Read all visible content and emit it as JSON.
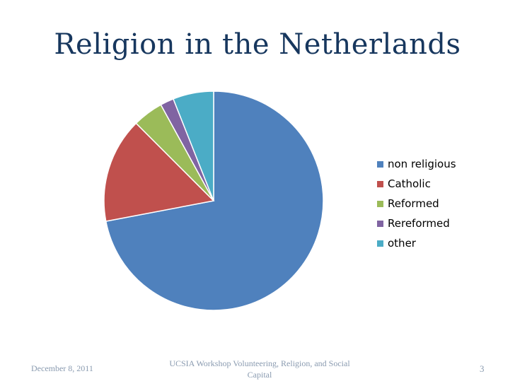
{
  "title": "Religion in the Netherlands",
  "chart_data": {
    "type": "pie",
    "title": "Religion in the Netherlands",
    "categories": [
      "non religious",
      "Catholic",
      "Reformed",
      "Rereformed",
      "other"
    ],
    "values": [
      72,
      15.5,
      4.5,
      2,
      6
    ],
    "colors": [
      "#4f81bd",
      "#c0504d",
      "#9bbb59",
      "#8064a2",
      "#4bacc6"
    ],
    "legend_position": "right"
  },
  "footer": {
    "date": "December 8, 2011",
    "center": "UCSIA Workshop Volunteering, Religion, and Social Capital",
    "page": "3"
  }
}
